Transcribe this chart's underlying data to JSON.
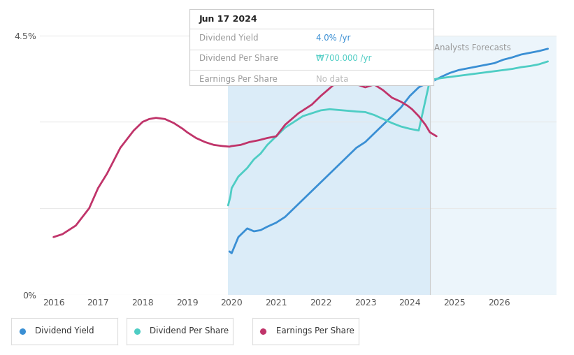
{
  "tooltip_date": "Jun 17 2024",
  "tooltip_dy": "4.0%",
  "tooltip_dps": "₩700.000",
  "tooltip_eps": "No data",
  "xmin": 2015.7,
  "xmax": 2027.3,
  "ymin": 0,
  "ymax": 4.5,
  "xticks": [
    2016,
    2017,
    2018,
    2019,
    2020,
    2021,
    2022,
    2023,
    2024,
    2025,
    2026
  ],
  "past_start": 2019.92,
  "past_end": 2024.45,
  "forecast_start": 2024.45,
  "forecast_end": 2027.3,
  "bg_color": "#ffffff",
  "past_fill_color": "#cce4f6",
  "forecast_fill_color": "#ddeef8",
  "grid_color": "#e8e8e8",
  "div_yield_color": "#3a8fd4",
  "div_per_share_color": "#4ecdc4",
  "earnings_per_share_color": "#c0346a",
  "legend_items": [
    {
      "label": "Dividend Yield",
      "color": "#3a8fd4"
    },
    {
      "label": "Dividend Per Share",
      "color": "#4ecdc4"
    },
    {
      "label": "Earnings Per Share",
      "color": "#c0346a"
    }
  ],
  "dividend_yield_x": [
    2019.95,
    2020.0,
    2020.15,
    2020.35,
    2020.5,
    2020.65,
    2020.8,
    2021.0,
    2021.2,
    2021.4,
    2021.6,
    2021.8,
    2022.0,
    2022.2,
    2022.4,
    2022.6,
    2022.8,
    2023.0,
    2023.2,
    2023.4,
    2023.6,
    2023.8,
    2024.0,
    2024.2,
    2024.45,
    2024.55,
    2024.7,
    2024.9,
    2025.1,
    2025.3,
    2025.5,
    2025.7,
    2025.9,
    2026.1,
    2026.3,
    2026.5,
    2026.7,
    2026.9,
    2027.1
  ],
  "dividend_yield_y": [
    0.75,
    0.72,
    1.0,
    1.15,
    1.1,
    1.12,
    1.18,
    1.25,
    1.35,
    1.5,
    1.65,
    1.8,
    1.95,
    2.1,
    2.25,
    2.4,
    2.55,
    2.65,
    2.8,
    2.95,
    3.1,
    3.25,
    3.45,
    3.6,
    3.7,
    3.72,
    3.78,
    3.85,
    3.9,
    3.93,
    3.96,
    3.99,
    4.02,
    4.08,
    4.12,
    4.17,
    4.2,
    4.23,
    4.27
  ],
  "div_per_share_x": [
    2019.92,
    2019.97,
    2020.0,
    2020.15,
    2020.35,
    2020.5,
    2020.65,
    2020.8,
    2021.0,
    2021.2,
    2021.4,
    2021.6,
    2021.8,
    2022.0,
    2022.2,
    2022.5,
    2022.8,
    2023.0,
    2023.2,
    2023.4,
    2023.6,
    2023.8,
    2024.0,
    2024.2,
    2024.45,
    2024.55,
    2024.7,
    2024.9,
    2025.1,
    2025.3,
    2025.5,
    2025.7,
    2025.9,
    2026.1,
    2026.3,
    2026.5,
    2026.7,
    2026.9,
    2027.1
  ],
  "div_per_share_y": [
    1.55,
    1.7,
    1.85,
    2.05,
    2.2,
    2.35,
    2.45,
    2.6,
    2.75,
    2.9,
    3.0,
    3.1,
    3.15,
    3.2,
    3.22,
    3.2,
    3.18,
    3.17,
    3.12,
    3.05,
    2.98,
    2.92,
    2.88,
    2.85,
    3.72,
    3.74,
    3.76,
    3.78,
    3.8,
    3.82,
    3.84,
    3.86,
    3.88,
    3.9,
    3.92,
    3.95,
    3.97,
    4.0,
    4.05
  ],
  "earnings_per_share_x": [
    2016.0,
    2016.2,
    2016.5,
    2016.8,
    2017.0,
    2017.2,
    2017.5,
    2017.8,
    2018.0,
    2018.15,
    2018.3,
    2018.5,
    2018.7,
    2018.9,
    2019.0,
    2019.2,
    2019.4,
    2019.6,
    2019.8,
    2019.95,
    2020.0,
    2020.2,
    2020.4,
    2020.6,
    2020.8,
    2021.0,
    2021.2,
    2021.5,
    2021.8,
    2022.0,
    2022.15,
    2022.3,
    2022.5,
    2022.7,
    2023.0,
    2023.2,
    2023.4,
    2023.6,
    2023.8,
    2023.95,
    2024.05,
    2024.2,
    2024.35,
    2024.45,
    2024.6
  ],
  "earnings_per_share_y": [
    1.0,
    1.05,
    1.2,
    1.5,
    1.85,
    2.1,
    2.55,
    2.85,
    3.0,
    3.05,
    3.07,
    3.05,
    2.98,
    2.88,
    2.82,
    2.72,
    2.65,
    2.6,
    2.58,
    2.57,
    2.58,
    2.6,
    2.65,
    2.68,
    2.72,
    2.75,
    2.95,
    3.15,
    3.3,
    3.45,
    3.55,
    3.65,
    3.72,
    3.68,
    3.6,
    3.65,
    3.55,
    3.42,
    3.35,
    3.28,
    3.22,
    3.1,
    2.95,
    2.82,
    2.75
  ]
}
